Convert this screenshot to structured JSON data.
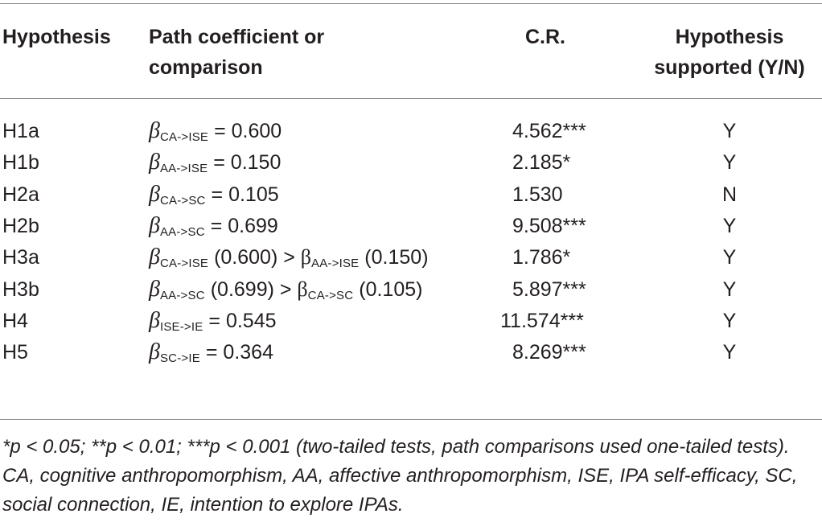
{
  "header": {
    "hypothesis": "Hypothesis",
    "path_line1": "Path coefficient or",
    "path_line2": "comparison",
    "cr": "C.R.",
    "supported_line1": "Hypothesis",
    "supported_line2": "supported (Y/N)"
  },
  "beta_symbol": "β",
  "rows": [
    {
      "h": "H1a",
      "sub": "CA->ISE",
      "val": " = 0.600",
      "cr": "4.562***",
      "s": "Y"
    },
    {
      "h": "H1b",
      "sub": "AA->ISE",
      "val": " = 0.150",
      "cr": "2.185*",
      "s": "Y"
    },
    {
      "h": "H2a",
      "sub": "CA->SC",
      "val": " = 0.105",
      "cr": "1.530",
      "s": "N"
    },
    {
      "h": "H2b",
      "sub": "AA->SC",
      "val": " = 0.699",
      "cr": "9.508***",
      "s": "Y"
    },
    {
      "h": "H3a",
      "sub": "CA->ISE",
      "val": " (0.600) > ",
      "sub2": "AA->ISE",
      "val2": " (0.150)",
      "cr": "1.786*",
      "s": "Y"
    },
    {
      "h": "H3b",
      "sub": "AA->SC",
      "val": " (0.699) > ",
      "sub2": "CA->SC",
      "val2": " (0.105)",
      "cr": "5.897***",
      "s": "Y"
    },
    {
      "h": "H4",
      "sub": "ISE->IE",
      "val": " = 0.545",
      "cr": "11.574***",
      "s": "Y"
    },
    {
      "h": "H5",
      "sub": "SC->IE",
      "val": " = 0.364",
      "cr": "8.269***",
      "s": "Y"
    }
  ],
  "footnote": "*p < 0.05;  **p < 0.01;  ***p < 0.001 (two-tailed tests, path comparisons used one-tailed tests).  CA, cognitive anthropomorphism, AA, affective anthropomorphism, ISE, IPA self-efficacy, SC, social connection, IE, intention to explore IPAs."
}
